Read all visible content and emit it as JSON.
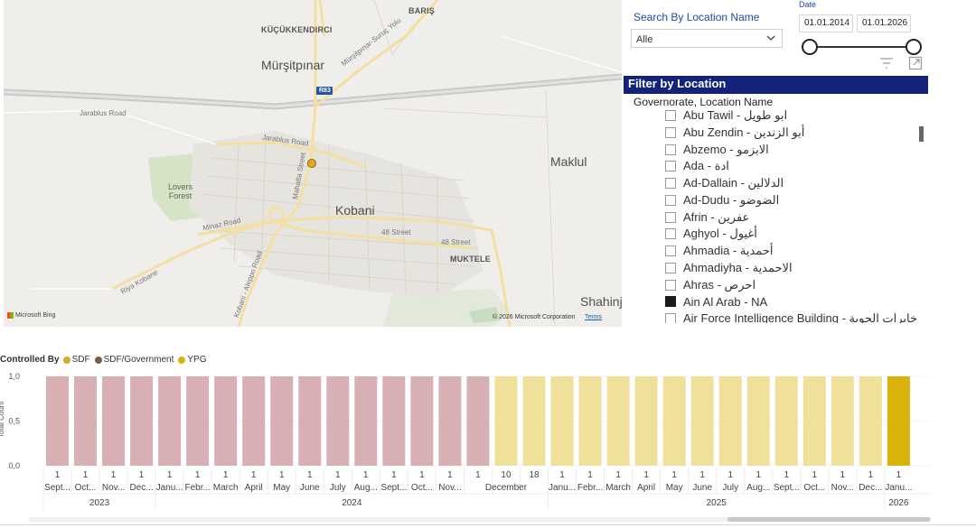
{
  "map": {
    "labels": {
      "baris": "BARIŞ",
      "kucukkendirci": "KÜÇÜKKENDIRCI",
      "mursitpinar": "Mürşitpınar",
      "mursitpinar_road": "Mürşitpınar-Suruç Yolu",
      "r883": "R83",
      "jarablus_road": "Jarablus Road",
      "jarablus_road2": "Jarablus Road",
      "maklul": "Maklul",
      "lovers_forest_1": "Lovers",
      "lovers_forest_2": "Forest",
      "mahatta_street": "Mahatta Street",
      "kobani": "Kobani",
      "minaz_road": "Minaz Road",
      "street_48_a": "48 Street",
      "street_48_b": "48 Street",
      "muktele": "MUKTELE",
      "riya_kobane": "Riya Kobane",
      "kobani_aleppo_road": "Kobani - Aleppo Road",
      "shahinj": "Shahinj"
    },
    "attribution": {
      "bing": "Microsoft Bing",
      "copyright": "© 2026 Microsoft Corporation",
      "terms": "Terms"
    }
  },
  "search": {
    "label": "Search By Location Name",
    "value": "Alle"
  },
  "date_filter": {
    "label": "Date",
    "start": "01.01.2014",
    "end": "01.01.2026"
  },
  "filter": {
    "header": "Filter by Location",
    "subheader": "Governorate, Location Name",
    "items": [
      {
        "label": "Abu Tawil - ابو طويل",
        "checked": false
      },
      {
        "label": "Abu Zendin - أبو الزندين",
        "checked": false
      },
      {
        "label": "Abzemo - الابزمو",
        "checked": false
      },
      {
        "label": "Ada - ادة",
        "checked": false
      },
      {
        "label": "Ad-Dallain - الدلالين",
        "checked": false
      },
      {
        "label": "Ad-Dudu - الضوضو",
        "checked": false
      },
      {
        "label": "Afrin - عفرين",
        "checked": false
      },
      {
        "label": "Aghyol - أغيول",
        "checked": false
      },
      {
        "label": "Ahmadia - أحمدية",
        "checked": false
      },
      {
        "label": "Ahmadiyha - الاحمدية",
        "checked": false
      },
      {
        "label": "Ahras - احرص",
        "checked": false
      },
      {
        "label": "Ain Al Arab - NA",
        "checked": true
      },
      {
        "label": "Air Force Intelligence Building - خابرات الجوية",
        "checked": false
      }
    ]
  },
  "chart_data": {
    "type": "bar",
    "legend_title": "Controlled By",
    "legend": [
      {
        "name": "SDF",
        "color": "#d4a82a"
      },
      {
        "name": "SDF/Government",
        "color": "#7a5c4a"
      },
      {
        "name": "YPG",
        "color": "#d9b20a"
      }
    ],
    "ylabel": "Total Count",
    "ylim": [
      0,
      1
    ],
    "yticks": [
      "0,0",
      "0,5",
      "1,0"
    ],
    "bars": [
      {
        "day": "1",
        "month": "Sept...",
        "value": 1,
        "color": "#d8b0b4"
      },
      {
        "day": "1",
        "month": "Oct...",
        "value": 1,
        "color": "#d8b0b4"
      },
      {
        "day": "1",
        "month": "Nov...",
        "value": 1,
        "color": "#d8b0b4"
      },
      {
        "day": "1",
        "month": "Dec...",
        "value": 1,
        "color": "#d8b0b4"
      },
      {
        "day": "1",
        "month": "Janu...",
        "value": 1,
        "color": "#d8b0b4"
      },
      {
        "day": "1",
        "month": "Febr...",
        "value": 1,
        "color": "#d8b0b4"
      },
      {
        "day": "1",
        "month": "March",
        "value": 1,
        "color": "#d8b0b4"
      },
      {
        "day": "1",
        "month": "April",
        "value": 1,
        "color": "#d8b0b4"
      },
      {
        "day": "1",
        "month": "May",
        "value": 1,
        "color": "#d8b0b4"
      },
      {
        "day": "1",
        "month": "June",
        "value": 1,
        "color": "#d8b0b4"
      },
      {
        "day": "1",
        "month": "July",
        "value": 1,
        "color": "#d8b0b4"
      },
      {
        "day": "1",
        "month": "Aug...",
        "value": 1,
        "color": "#d8b0b4"
      },
      {
        "day": "1",
        "month": "Sept...",
        "value": 1,
        "color": "#d8b0b4"
      },
      {
        "day": "1",
        "month": "Oct...",
        "value": 1,
        "color": "#d8b0b4"
      },
      {
        "day": "1",
        "month": "Nov...",
        "value": 1,
        "color": "#d8b0b4"
      },
      {
        "day": "1",
        "month": "",
        "value": 1,
        "color": "#d8b0b4"
      },
      {
        "day": "10",
        "month": "",
        "value": 1,
        "color": "#efe09a"
      },
      {
        "day": "18",
        "month": "",
        "value": 1,
        "color": "#efe09a"
      },
      {
        "day": "1",
        "month": "Janu...",
        "value": 1,
        "color": "#efe09a"
      },
      {
        "day": "1",
        "month": "Febr...",
        "value": 1,
        "color": "#efe09a"
      },
      {
        "day": "1",
        "month": "March",
        "value": 1,
        "color": "#efe09a"
      },
      {
        "day": "1",
        "month": "April",
        "value": 1,
        "color": "#efe09a"
      },
      {
        "day": "1",
        "month": "May",
        "value": 1,
        "color": "#efe09a"
      },
      {
        "day": "1",
        "month": "June",
        "value": 1,
        "color": "#efe09a"
      },
      {
        "day": "1",
        "month": "July",
        "value": 1,
        "color": "#efe09a"
      },
      {
        "day": "1",
        "month": "Aug...",
        "value": 1,
        "color": "#efe09a"
      },
      {
        "day": "1",
        "month": "Sept...",
        "value": 1,
        "color": "#efe09a"
      },
      {
        "day": "1",
        "month": "Oct...",
        "value": 1,
        "color": "#efe09a"
      },
      {
        "day": "1",
        "month": "Nov...",
        "value": 1,
        "color": "#efe09a"
      },
      {
        "day": "1",
        "month": "Dec...",
        "value": 1,
        "color": "#efe09a"
      },
      {
        "day": "1",
        "month": "Janu...",
        "value": 1,
        "color": "#d9b20a"
      }
    ],
    "merged_month": {
      "label": "December",
      "from": 15,
      "to": 17
    },
    "years": [
      {
        "label": "2023",
        "from": 0,
        "to": 3
      },
      {
        "label": "2024",
        "from": 4,
        "to": 17
      },
      {
        "label": "2025",
        "from": 18,
        "to": 29
      },
      {
        "label": "2026",
        "from": 30,
        "to": 30
      }
    ]
  }
}
